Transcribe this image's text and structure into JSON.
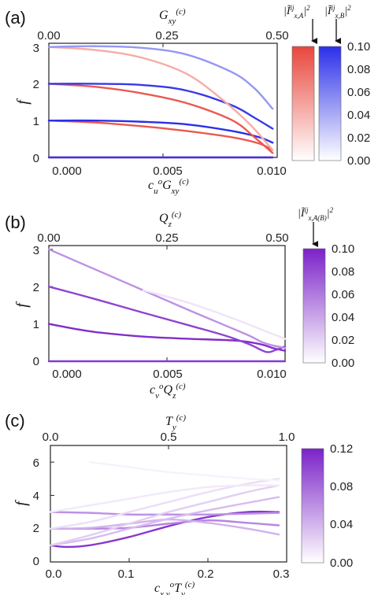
{
  "chart_data": [
    {
      "panel": "(a)",
      "type": "line",
      "xlabel": "c_u^o G_xy^(c)",
      "x2label": "G_xy^(c)",
      "ylabel": "f",
      "xlim": [
        0,
        0.01
      ],
      "ylim": [
        0,
        3.1
      ],
      "xticks": [
        "0.000",
        "0.005",
        "0.010"
      ],
      "x2ticks": [
        "0.00",
        "0.25",
        "0.50"
      ],
      "yticks": [
        "0",
        "1",
        "2",
        "3"
      ],
      "colorbars": [
        {
          "label": "|Ĩ^ij_x,A|^2",
          "color": "#e8463c",
          "range": [
            0,
            0.1
          ],
          "ticks": []
        },
        {
          "label": "|Ĩ^ij_x,B|^2",
          "color": "#2b2fe8",
          "range": [
            0,
            0.1
          ],
          "ticks": [
            "0.00",
            "0.02",
            "0.04",
            "0.06",
            "0.08",
            "0.10"
          ]
        }
      ],
      "series": [
        {
          "color": "#e8463c",
          "intensity": 0.95,
          "x": [
            0,
            0.0025,
            0.005,
            0.0075,
            0.0088,
            0.0095,
            0.0098
          ],
          "y": [
            0,
            0,
            0,
            0,
            0,
            0,
            0
          ]
        },
        {
          "color": "#2b2fe8",
          "intensity": 0.95,
          "x": [
            0,
            0.0025,
            0.005,
            0.0075,
            0.0088,
            0.0095,
            0.0098
          ],
          "y": [
            0,
            0,
            0,
            0,
            0,
            0,
            0
          ]
        },
        {
          "color": "#e8463c",
          "intensity": 0.9,
          "x": [
            0,
            0.002,
            0.004,
            0.006,
            0.008,
            0.0092,
            0.0098
          ],
          "y": [
            1.0,
            0.95,
            0.85,
            0.72,
            0.55,
            0.38,
            0.2
          ]
        },
        {
          "color": "#2b2fe8",
          "intensity": 1.0,
          "x": [
            0,
            0.002,
            0.004,
            0.006,
            0.008,
            0.0092,
            0.0098
          ],
          "y": [
            1.0,
            1.0,
            0.97,
            0.9,
            0.72,
            0.55,
            0.4
          ]
        },
        {
          "color": "#e8463c",
          "intensity": 0.9,
          "x": [
            0,
            0.002,
            0.004,
            0.006,
            0.008,
            0.009,
            0.0098
          ],
          "y": [
            2.0,
            1.92,
            1.75,
            1.48,
            1.02,
            0.55,
            0.12
          ]
        },
        {
          "color": "#2b2fe8",
          "intensity": 0.95,
          "x": [
            0,
            0.002,
            0.004,
            0.006,
            0.008,
            0.009,
            0.0098
          ],
          "y": [
            2.0,
            2.0,
            1.97,
            1.82,
            1.42,
            1.08,
            0.78
          ]
        },
        {
          "color": "#e8463c",
          "intensity": 0.45,
          "x": [
            0,
            0.002,
            0.004,
            0.006,
            0.0075,
            0.0088,
            0.0098
          ],
          "y": [
            3.0,
            2.92,
            2.72,
            2.28,
            1.62,
            0.9,
            0.2
          ]
        },
        {
          "color": "#2b2fe8",
          "intensity": 0.5,
          "x": [
            0,
            0.002,
            0.004,
            0.006,
            0.008,
            0.009,
            0.0098
          ],
          "y": [
            3.0,
            3.02,
            2.98,
            2.8,
            2.32,
            1.88,
            1.32
          ]
        }
      ]
    },
    {
      "panel": "(b)",
      "type": "line",
      "xlabel": "c_v^o Q_z^(c)",
      "x2label": "Q_z^(c)",
      "ylabel": "f",
      "xlim": [
        0,
        0.01
      ],
      "ylim": [
        0,
        3.1
      ],
      "xticks": [
        "0.000",
        "0.005",
        "0.010"
      ],
      "x2ticks": [
        "0.00",
        "0.25",
        "0.50"
      ],
      "yticks": [
        "0",
        "1",
        "2",
        "3"
      ],
      "colorbars": [
        {
          "label": "|Ĩ^ij_x,A(B)|^2",
          "color": "#7b22c8",
          "range": [
            0,
            0.1
          ],
          "ticks": [
            "0.00",
            "0.02",
            "0.04",
            "0.06",
            "0.08",
            "0.10"
          ]
        }
      ],
      "series": [
        {
          "color": "#7b22c8",
          "intensity": 0.9,
          "x": [
            0,
            0.0025,
            0.005,
            0.0075,
            0.0095,
            0.01
          ],
          "y": [
            0,
            0,
            0,
            0,
            0,
            0
          ]
        },
        {
          "color": "#7b22c8",
          "intensity": 0.95,
          "x": [
            0,
            0.001,
            0.002,
            0.004,
            0.006,
            0.008,
            0.009,
            0.0095,
            0.01
          ],
          "y": [
            1.0,
            0.88,
            0.78,
            0.66,
            0.6,
            0.55,
            0.45,
            0.35,
            0.28
          ]
        },
        {
          "color": "#7b22c8",
          "intensity": 0.85,
          "x": [
            0,
            0.002,
            0.004,
            0.006,
            0.0075,
            0.0085,
            0.0092,
            0.0096,
            0.01
          ],
          "y": [
            2.0,
            1.66,
            1.3,
            0.95,
            0.68,
            0.45,
            0.25,
            0.3,
            0.4
          ]
        },
        {
          "color": "#7b22c8",
          "intensity": 0.5,
          "x": [
            0,
            0.002,
            0.004,
            0.006,
            0.0075,
            0.0085,
            0.009,
            0.0095,
            0.01
          ],
          "y": [
            3.0,
            2.45,
            1.9,
            1.35,
            0.95,
            0.68,
            0.52,
            0.42,
            0.36
          ]
        },
        {
          "color": "#7b22c8",
          "intensity": 0.12,
          "x": [
            0.004,
            0.006,
            0.008,
            0.009,
            0.01
          ],
          "y": [
            1.9,
            1.55,
            1.1,
            0.85,
            0.6
          ]
        }
      ]
    },
    {
      "panel": "(c)",
      "type": "line",
      "xlabel": "c_x,y^o T_y^(c)",
      "x2label": "T_y^(c)",
      "ylabel": "f",
      "xlim": [
        0,
        0.3
      ],
      "ylim": [
        0,
        7
      ],
      "xticks": [
        "0.0",
        "0.1",
        "0.2",
        "0.3"
      ],
      "x2ticks": [
        "0.0",
        "0.5",
        "1.0"
      ],
      "yticks": [
        "0",
        "2",
        "4",
        "6"
      ],
      "colorbars": [
        {
          "label": "",
          "color": "#7b22c8",
          "range": [
            0,
            0.12
          ],
          "ticks": [
            "0.00",
            "0.04",
            "0.08",
            "0.12"
          ]
        }
      ],
      "series": [
        {
          "color": "#7b22c8",
          "intensity": 0.9,
          "x": [
            0,
            0.02,
            0.05,
            0.1,
            0.15,
            0.2,
            0.25,
            0.29
          ],
          "y": [
            1.0,
            0.9,
            1.0,
            1.5,
            2.15,
            2.7,
            3.0,
            3.0
          ]
        },
        {
          "color": "#7b22c8",
          "intensity": 0.55,
          "x": [
            0,
            0.05,
            0.1,
            0.15,
            0.2,
            0.25,
            0.29
          ],
          "y": [
            2.0,
            2.0,
            2.05,
            2.3,
            2.5,
            2.35,
            2.2
          ]
        },
        {
          "color": "#7b22c8",
          "intensity": 0.5,
          "x": [
            0,
            0.05,
            0.1,
            0.15,
            0.2,
            0.25,
            0.29
          ],
          "y": [
            3.0,
            2.95,
            2.85,
            2.85,
            2.85,
            2.9,
            2.95
          ]
        },
        {
          "color": "#7b22c8",
          "intensity": 0.35,
          "x": [
            0,
            0.05,
            0.1,
            0.15,
            0.2,
            0.25,
            0.29
          ],
          "y": [
            2.0,
            2.05,
            2.3,
            2.55,
            2.35,
            2.0,
            1.65
          ]
        },
        {
          "color": "#7b22c8",
          "intensity": 0.3,
          "x": [
            0,
            0.05,
            0.1,
            0.15,
            0.2,
            0.25,
            0.29
          ],
          "y": [
            1.0,
            1.4,
            2.0,
            2.6,
            3.1,
            3.55,
            3.9
          ]
        },
        {
          "color": "#7b22c8",
          "intensity": 0.22,
          "x": [
            0,
            0.05,
            0.1,
            0.15,
            0.2,
            0.25,
            0.29
          ],
          "y": [
            1.0,
            1.6,
            2.3,
            3.0,
            3.6,
            4.2,
            4.6
          ]
        },
        {
          "color": "#7b22c8",
          "intensity": 0.15,
          "x": [
            0,
            0.05,
            0.1,
            0.15,
            0.2,
            0.25,
            0.29
          ],
          "y": [
            2.0,
            2.4,
            3.0,
            3.6,
            4.2,
            4.7,
            5.0
          ]
        },
        {
          "color": "#7b22c8",
          "intensity": 0.1,
          "x": [
            0,
            0.05,
            0.1,
            0.15,
            0.2,
            0.25,
            0.29
          ],
          "y": [
            3.0,
            3.4,
            3.8,
            4.2,
            4.5,
            4.6,
            4.6
          ]
        },
        {
          "color": "#7b22c8",
          "intensity": 0.06,
          "x": [
            0.05,
            0.1,
            0.15,
            0.2,
            0.25,
            0.29
          ],
          "y": [
            6.0,
            5.7,
            5.4,
            5.2,
            5.0,
            4.9
          ]
        }
      ]
    }
  ]
}
